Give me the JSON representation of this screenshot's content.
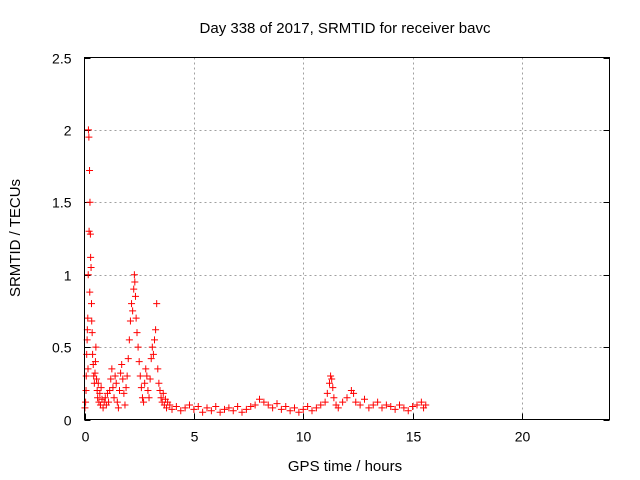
{
  "chart_data": {
    "type": "scatter",
    "title": "Day 338 of 2017, SRMTID for receiver bavc",
    "xlabel": "GPS time / hours",
    "ylabel": "SRMTID / TECUs",
    "xlim": [
      0,
      24
    ],
    "ylim": [
      0,
      2.5
    ],
    "xticks": [
      0,
      5,
      10,
      15,
      20
    ],
    "yticks": [
      0,
      0.5,
      1,
      1.5,
      2,
      2.5
    ],
    "xtick_labels": [
      "0",
      "5",
      "10",
      "15",
      "20"
    ],
    "ytick_labels": [
      "0",
      "0.5",
      "1",
      "1.5",
      "2",
      "2.5"
    ],
    "grid": true,
    "marker": "+",
    "series": [
      {
        "name": "SRMTID",
        "color": "#ff0000",
        "points": [
          [
            0.02,
            0.08
          ],
          [
            0.05,
            0.12
          ],
          [
            0.07,
            0.2
          ],
          [
            0.08,
            0.3
          ],
          [
            0.1,
            0.45
          ],
          [
            0.12,
            0.55
          ],
          [
            0.13,
            0.62
          ],
          [
            0.15,
            0.7
          ],
          [
            0.16,
            0.35
          ],
          [
            0.17,
            1.0
          ],
          [
            0.18,
            2.0
          ],
          [
            0.2,
            1.95
          ],
          [
            0.21,
            1.3
          ],
          [
            0.23,
            1.72
          ],
          [
            0.24,
            0.88
          ],
          [
            0.25,
            1.5
          ],
          [
            0.27,
            1.28
          ],
          [
            0.28,
            1.12
          ],
          [
            0.3,
            1.05
          ],
          [
            0.32,
            0.8
          ],
          [
            0.33,
            0.68
          ],
          [
            0.35,
            0.6
          ],
          [
            0.37,
            0.45
          ],
          [
            0.4,
            0.38
          ],
          [
            0.42,
            0.3
          ],
          [
            0.45,
            0.25
          ],
          [
            0.48,
            0.32
          ],
          [
            0.5,
            0.4
          ],
          [
            0.52,
            0.5
          ],
          [
            0.55,
            0.28
          ],
          [
            0.58,
            0.2
          ],
          [
            0.6,
            0.15
          ],
          [
            0.63,
            0.25
          ],
          [
            0.66,
            0.12
          ],
          [
            0.7,
            0.18
          ],
          [
            0.73,
            0.1
          ],
          [
            0.76,
            0.22
          ],
          [
            0.8,
            0.14
          ],
          [
            0.85,
            0.08
          ],
          [
            0.9,
            0.12
          ],
          [
            0.95,
            0.15
          ],
          [
            1.0,
            0.1
          ],
          [
            1.05,
            0.18
          ],
          [
            1.1,
            0.12
          ],
          [
            1.15,
            0.2
          ],
          [
            1.2,
            0.28
          ],
          [
            1.25,
            0.35
          ],
          [
            1.3,
            0.22
          ],
          [
            1.35,
            0.15
          ],
          [
            1.4,
            0.3
          ],
          [
            1.45,
            0.25
          ],
          [
            1.5,
            0.12
          ],
          [
            1.55,
            0.08
          ],
          [
            1.6,
            0.2
          ],
          [
            1.65,
            0.32
          ],
          [
            1.7,
            0.38
          ],
          [
            1.75,
            0.28
          ],
          [
            1.8,
            0.18
          ],
          [
            1.85,
            0.1
          ],
          [
            1.9,
            0.22
          ],
          [
            1.95,
            0.3
          ],
          [
            2.0,
            0.42
          ],
          [
            2.05,
            0.55
          ],
          [
            2.1,
            0.68
          ],
          [
            2.15,
            0.8
          ],
          [
            2.2,
            0.75
          ],
          [
            2.25,
            0.9
          ],
          [
            2.28,
            1.0
          ],
          [
            2.3,
            0.95
          ],
          [
            2.33,
            0.85
          ],
          [
            2.36,
            0.7
          ],
          [
            2.4,
            0.6
          ],
          [
            2.45,
            0.5
          ],
          [
            2.5,
            0.4
          ],
          [
            2.55,
            0.3
          ],
          [
            2.6,
            0.22
          ],
          [
            2.65,
            0.15
          ],
          [
            2.7,
            0.12
          ],
          [
            2.75,
            0.25
          ],
          [
            2.8,
            0.35
          ],
          [
            2.85,
            0.3
          ],
          [
            2.9,
            0.2
          ],
          [
            2.95,
            0.15
          ],
          [
            3.0,
            0.28
          ],
          [
            3.05,
            0.42
          ],
          [
            3.1,
            0.5
          ],
          [
            3.15,
            0.45
          ],
          [
            3.2,
            0.55
          ],
          [
            3.25,
            0.62
          ],
          [
            3.3,
            0.8
          ],
          [
            3.35,
            0.35
          ],
          [
            3.4,
            0.25
          ],
          [
            3.45,
            0.2
          ],
          [
            3.5,
            0.15
          ],
          [
            3.55,
            0.12
          ],
          [
            3.6,
            0.18
          ],
          [
            3.65,
            0.1
          ],
          [
            3.7,
            0.14
          ],
          [
            3.75,
            0.08
          ],
          [
            3.8,
            0.12
          ],
          [
            3.9,
            0.1
          ],
          [
            4.0,
            0.07
          ],
          [
            4.2,
            0.09
          ],
          [
            4.4,
            0.06
          ],
          [
            4.6,
            0.08
          ],
          [
            4.8,
            0.1
          ],
          [
            5.0,
            0.07
          ],
          [
            5.2,
            0.09
          ],
          [
            5.4,
            0.05
          ],
          [
            5.6,
            0.08
          ],
          [
            5.8,
            0.06
          ],
          [
            6.0,
            0.09
          ],
          [
            6.2,
            0.05
          ],
          [
            6.4,
            0.07
          ],
          [
            6.6,
            0.08
          ],
          [
            6.8,
            0.06
          ],
          [
            7.0,
            0.09
          ],
          [
            7.2,
            0.05
          ],
          [
            7.4,
            0.07
          ],
          [
            7.6,
            0.09
          ],
          [
            7.8,
            0.1
          ],
          [
            8.0,
            0.14
          ],
          [
            8.2,
            0.12
          ],
          [
            8.4,
            0.1
          ],
          [
            8.6,
            0.08
          ],
          [
            8.8,
            0.11
          ],
          [
            9.0,
            0.07
          ],
          [
            9.2,
            0.09
          ],
          [
            9.4,
            0.06
          ],
          [
            9.6,
            0.08
          ],
          [
            9.8,
            0.05
          ],
          [
            10.0,
            0.07
          ],
          [
            10.2,
            0.09
          ],
          [
            10.4,
            0.06
          ],
          [
            10.6,
            0.08
          ],
          [
            10.8,
            0.1
          ],
          [
            11.0,
            0.12
          ],
          [
            11.1,
            0.18
          ],
          [
            11.2,
            0.25
          ],
          [
            11.25,
            0.3
          ],
          [
            11.3,
            0.28
          ],
          [
            11.35,
            0.22
          ],
          [
            11.4,
            0.15
          ],
          [
            11.5,
            0.1
          ],
          [
            11.6,
            0.08
          ],
          [
            11.8,
            0.12
          ],
          [
            12.0,
            0.15
          ],
          [
            12.2,
            0.2
          ],
          [
            12.3,
            0.18
          ],
          [
            12.4,
            0.12
          ],
          [
            12.6,
            0.1
          ],
          [
            12.8,
            0.14
          ],
          [
            13.0,
            0.08
          ],
          [
            13.2,
            0.1
          ],
          [
            13.4,
            0.12
          ],
          [
            13.6,
            0.08
          ],
          [
            13.8,
            0.1
          ],
          [
            14.0,
            0.09
          ],
          [
            14.2,
            0.07
          ],
          [
            14.4,
            0.1
          ],
          [
            14.6,
            0.08
          ],
          [
            14.8,
            0.06
          ],
          [
            15.0,
            0.09
          ],
          [
            15.2,
            0.1
          ],
          [
            15.4,
            0.12
          ],
          [
            15.5,
            0.08
          ],
          [
            15.6,
            0.1
          ]
        ]
      }
    ]
  }
}
